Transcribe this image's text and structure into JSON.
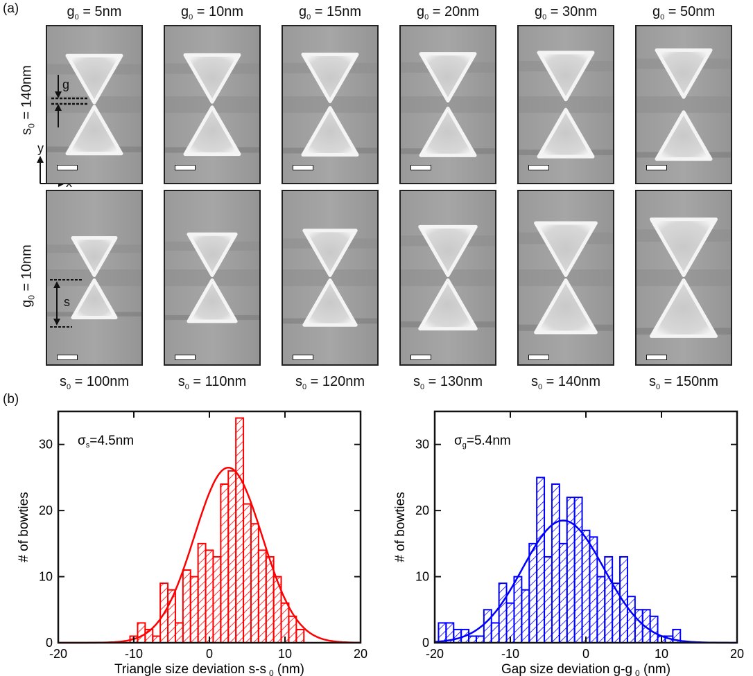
{
  "panel_a": {
    "label": "(a)",
    "top_row_label": "s",
    "top_row_label_sub": "0",
    "top_row_label_rest": " = 140nm",
    "bottom_row_label": "g",
    "bottom_row_label_sub": "0",
    "bottom_row_label_rest": " = 10nm",
    "top_col_labels": [
      {
        "main": "g",
        "sub": "0",
        "rest": " = 5nm"
      },
      {
        "main": "g",
        "sub": "0",
        "rest": " = 10nm"
      },
      {
        "main": "g",
        "sub": "0",
        "rest": " = 15nm"
      },
      {
        "main": "g",
        "sub": "0",
        "rest": " = 20nm"
      },
      {
        "main": "g",
        "sub": "0",
        "rest": " = 30nm"
      },
      {
        "main": "g",
        "sub": "0",
        "rest": " = 50nm"
      }
    ],
    "bottom_col_labels": [
      {
        "main": "s",
        "sub": "0",
        "rest": " = 100nm"
      },
      {
        "main": "s",
        "sub": "0",
        "rest": " = 110nm"
      },
      {
        "main": "s",
        "sub": "0",
        "rest": " = 120nm"
      },
      {
        "main": "s",
        "sub": "0",
        "rest": " = 130nm"
      },
      {
        "main": "s",
        "sub": "0",
        "rest": " = 140nm"
      },
      {
        "main": "s",
        "sub": "0",
        "rest": " = 150nm"
      }
    ],
    "gap_annotation": "g",
    "size_annotation": "s",
    "axis_y": "y",
    "axis_x": "x"
  },
  "panel_b": {
    "label": "(b)"
  },
  "chart_data": [
    {
      "type": "bar",
      "color": "#ff0000",
      "annotation": "σs=4.5nm",
      "annotation_main": "σ",
      "annotation_sub": "s",
      "annotation_rest": "=4.5nm",
      "xlabel": "Triangle size deviation s-s",
      "xlabel_sub": "0",
      "xlabel_rest": " (nm)",
      "ylabel": "# of bowties",
      "xlim": [
        -20,
        20
      ],
      "ylim": [
        0,
        35
      ],
      "xticks": [
        -20,
        -10,
        0,
        10,
        20
      ],
      "yticks": [
        0,
        10,
        20,
        30
      ],
      "bin_width": 1,
      "bins": [
        {
          "x": -10,
          "y": 1
        },
        {
          "x": -9,
          "y": 3
        },
        {
          "x": -8,
          "y": 2
        },
        {
          "x": -7,
          "y": 1
        },
        {
          "x": -6,
          "y": 9
        },
        {
          "x": -5,
          "y": 8
        },
        {
          "x": -4,
          "y": 3
        },
        {
          "x": -3,
          "y": 11
        },
        {
          "x": -2,
          "y": 10
        },
        {
          "x": -1,
          "y": 15
        },
        {
          "x": 0,
          "y": 14
        },
        {
          "x": 1,
          "y": 13
        },
        {
          "x": 2,
          "y": 24
        },
        {
          "x": 3,
          "y": 26
        },
        {
          "x": 4,
          "y": 34
        },
        {
          "x": 5,
          "y": 21
        },
        {
          "x": 6,
          "y": 18
        },
        {
          "x": 7,
          "y": 14
        },
        {
          "x": 8,
          "y": 13
        },
        {
          "x": 9,
          "y": 10
        },
        {
          "x": 10,
          "y": 6
        },
        {
          "x": 11,
          "y": 4
        },
        {
          "x": 12,
          "y": 2
        }
      ],
      "fit": {
        "mu": 2.5,
        "sigma": 4.5,
        "amplitude": 26.5
      }
    },
    {
      "type": "bar",
      "color": "#0000ff",
      "annotation": "σg=5.4nm",
      "annotation_main": "σ",
      "annotation_sub": "g",
      "annotation_rest": "=5.4nm",
      "xlabel": "Gap size deviation g-g",
      "xlabel_sub": "0",
      "xlabel_rest": " (nm)",
      "ylabel": "# of bowties",
      "xlim": [
        -20,
        20
      ],
      "ylim": [
        0,
        35
      ],
      "xticks": [
        -20,
        -10,
        0,
        10,
        20
      ],
      "yticks": [
        0,
        10,
        20,
        30
      ],
      "bin_width": 1,
      "bins": [
        {
          "x": -19,
          "y": 3
        },
        {
          "x": -18,
          "y": 3
        },
        {
          "x": -17,
          "y": 2
        },
        {
          "x": -16,
          "y": 2
        },
        {
          "x": -15,
          "y": 1
        },
        {
          "x": -14,
          "y": 1
        },
        {
          "x": -13,
          "y": 5
        },
        {
          "x": -12,
          "y": 3
        },
        {
          "x": -11,
          "y": 9
        },
        {
          "x": -10,
          "y": 6
        },
        {
          "x": -9,
          "y": 10
        },
        {
          "x": -8,
          "y": 8
        },
        {
          "x": -7,
          "y": 15
        },
        {
          "x": -6,
          "y": 25
        },
        {
          "x": -5,
          "y": 13
        },
        {
          "x": -4,
          "y": 24
        },
        {
          "x": -3,
          "y": 15
        },
        {
          "x": -2,
          "y": 22
        },
        {
          "x": -1,
          "y": 22
        },
        {
          "x": 0,
          "y": 17
        },
        {
          "x": 1,
          "y": 16
        },
        {
          "x": 2,
          "y": 10
        },
        {
          "x": 3,
          "y": 13
        },
        {
          "x": 4,
          "y": 9
        },
        {
          "x": 5,
          "y": 13
        },
        {
          "x": 6,
          "y": 7
        },
        {
          "x": 7,
          "y": 5
        },
        {
          "x": 8,
          "y": 5
        },
        {
          "x": 9,
          "y": 4
        },
        {
          "x": 10,
          "y": 1
        },
        {
          "x": 11,
          "y": 1
        },
        {
          "x": 12,
          "y": 2
        }
      ],
      "fit": {
        "mu": -3,
        "sigma": 5.4,
        "amplitude": 18.5
      }
    }
  ]
}
